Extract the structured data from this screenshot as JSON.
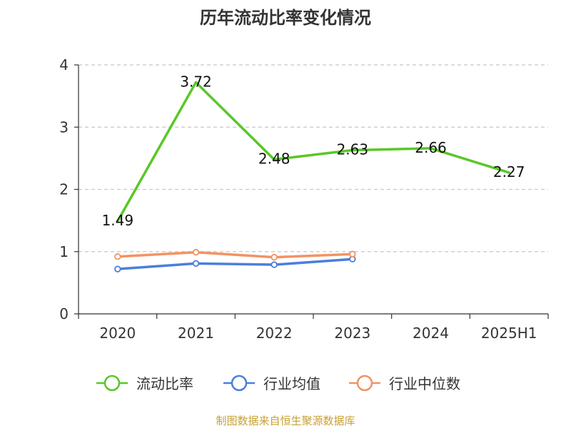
{
  "chart_data": {
    "type": "line",
    "title": "历年流动比率变化情况",
    "categories": [
      "2020",
      "2021",
      "2022",
      "2023",
      "2024",
      "2025H1"
    ],
    "ylim": [
      0,
      4
    ],
    "yticks": [
      "0",
      "1",
      "2",
      "3",
      "4"
    ],
    "grid": true,
    "legend_position": "bottom",
    "series": [
      {
        "name": "流动比率",
        "color": "#5ac727",
        "values": [
          1.49,
          3.72,
          2.48,
          2.63,
          2.66,
          2.27
        ],
        "labels": [
          "1.49",
          "3.72",
          "2.48",
          "2.63",
          "2.66",
          "2.27"
        ],
        "markers": false
      },
      {
        "name": "行业均值",
        "color": "#4a7fdc",
        "values": [
          0.72,
          0.81,
          0.79,
          0.88,
          null,
          null
        ],
        "markers": true
      },
      {
        "name": "行业中位数",
        "color": "#f39363",
        "values": [
          0.92,
          0.99,
          0.91,
          0.96,
          null,
          null
        ],
        "markers": true
      }
    ]
  },
  "source_text": "制图数据来自恒生聚源数据库",
  "source_color": "#c8a032",
  "axis_color": "#333333",
  "grid_color": "#c8c8c8"
}
